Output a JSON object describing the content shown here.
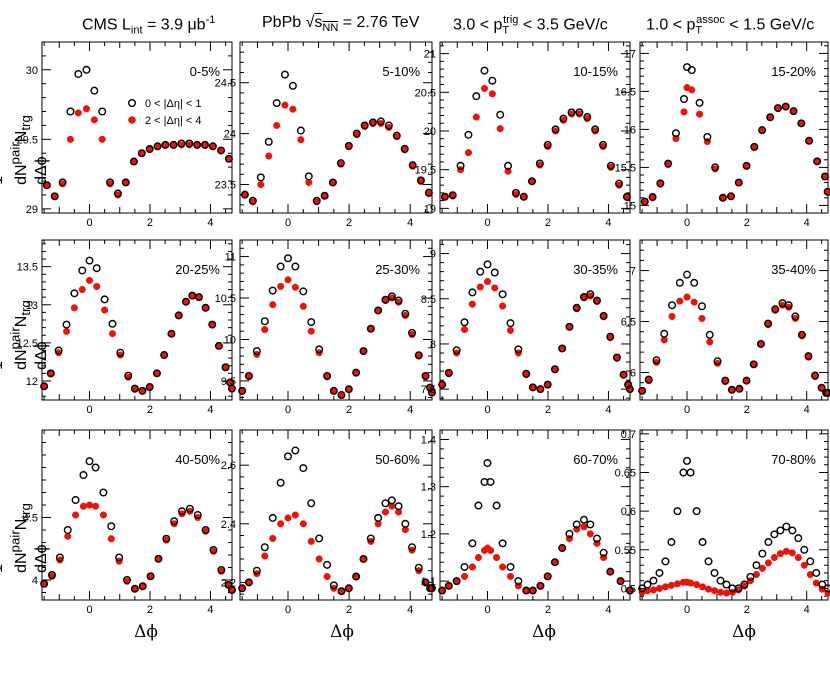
{
  "header": {
    "cms_prefix": "CMS L",
    "cms_sub": "int",
    "cms_value": " = 3.9 μb",
    "cms_sup": "-1",
    "system": "PbPb ",
    "sqrt_s": "s",
    "sqrt_sub": "NN",
    "energy": " = 2.76 TeV",
    "trig_lo": "3.0 < p",
    "trig_sub": "T",
    "trig_sup": "trig",
    "trig_hi": " < 3.5 GeV/c",
    "assoc_lo": "1.0 < p",
    "assoc_sub": "T",
    "assoc_sup": "assoc",
    "assoc_hi": " < 1.5 GeV/c"
  },
  "ylabel": {
    "num": "1",
    "dn": "dN",
    "pair_sup": "pair",
    "n": "N",
    "trg_sub": "trg",
    "dphi": "dΔϕ"
  },
  "xlabel": "Δϕ",
  "legend": {
    "open": "0 < |Δη| < 1",
    "filled": "2 < |Δη| < 4"
  },
  "colors": {
    "open_marker": "#000000",
    "filled_marker": "#e8150d",
    "axis": "#000000"
  },
  "chart_data": {
    "type": "scatter",
    "x": [
      -1.41,
      -1.15,
      -0.89,
      -0.63,
      -0.37,
      -0.1,
      0.16,
      0.42,
      0.68,
      0.94,
      1.2,
      1.47,
      1.73,
      1.99,
      2.25,
      2.51,
      2.78,
      3.04,
      3.3,
      3.56,
      3.82,
      4.08,
      4.35,
      4.61
    ],
    "xlim": [
      -1.5708,
      4.7124
    ],
    "xticks": [
      0,
      2,
      4
    ],
    "panels": [
      {
        "label": "0-5%",
        "ylim": [
          28.97,
          30.2
        ],
        "yticks": [
          29,
          29.5,
          30
        ],
        "open": [
          29.17,
          29.09,
          29.19,
          29.7,
          29.97,
          30.0,
          29.85,
          29.7,
          29.19,
          29.11,
          29.19,
          29.34,
          29.4,
          29.43,
          29.45,
          29.46,
          29.46,
          29.47,
          29.47,
          29.46,
          29.46,
          29.45,
          29.42,
          29.36
        ],
        "filled": [
          29.17,
          29.09,
          29.18,
          29.5,
          29.69,
          29.72,
          29.64,
          29.5,
          29.18,
          29.1,
          29.19,
          29.34,
          29.4,
          29.43,
          29.45,
          29.46,
          29.46,
          29.46,
          29.46,
          29.46,
          29.46,
          29.45,
          29.42,
          29.36
        ]
      },
      {
        "label": "5-10%",
        "ylim": [
          23.22,
          24.9
        ],
        "yticks": [
          23.5,
          24,
          24.5
        ],
        "open": [
          23.4,
          23.34,
          23.57,
          23.92,
          24.3,
          24.58,
          24.47,
          24.03,
          23.58,
          23.34,
          23.39,
          23.52,
          23.71,
          23.88,
          24.0,
          24.08,
          24.11,
          24.12,
          24.08,
          23.98,
          23.85,
          23.69,
          23.54,
          23.42
        ],
        "filled": [
          23.4,
          23.33,
          23.5,
          23.78,
          24.08,
          24.28,
          24.24,
          23.94,
          23.52,
          23.33,
          23.39,
          23.52,
          23.7,
          23.87,
          23.99,
          24.07,
          24.1,
          24.1,
          24.06,
          23.97,
          23.84,
          23.68,
          23.53,
          23.41
        ]
      },
      {
        "label": "10-15%",
        "ylim": [
          18.94,
          21.15
        ],
        "yticks": [
          19,
          19.5,
          20,
          20.5,
          21
        ],
        "open": [
          19.15,
          19.17,
          19.55,
          19.95,
          20.45,
          20.78,
          20.65,
          20.21,
          19.55,
          19.2,
          19.15,
          19.35,
          19.58,
          19.82,
          20.02,
          20.16,
          20.24,
          20.24,
          20.18,
          20.02,
          19.82,
          19.55,
          19.32,
          19.15
        ],
        "filled": [
          19.15,
          19.16,
          19.5,
          19.72,
          20.18,
          20.55,
          20.48,
          20.03,
          19.48,
          19.18,
          19.15,
          19.35,
          19.56,
          19.8,
          20.0,
          20.14,
          20.22,
          20.22,
          20.16,
          20.0,
          19.8,
          19.53,
          19.3,
          19.14
        ]
      },
      {
        "label": "15-20%",
        "ylim": [
          14.9,
          17.15
        ],
        "yticks": [
          15,
          15.5,
          16,
          16.5,
          17
        ],
        "open": [
          15.05,
          15.11,
          15.29,
          15.55,
          15.95,
          16.4,
          16.82,
          16.78,
          16.35,
          15.9,
          15.5,
          15.1,
          15.12,
          15.3,
          15.52,
          15.77,
          15.99,
          16.16,
          16.28,
          16.3,
          16.24,
          16.08,
          15.85,
          15.58,
          15.38,
          15.18
        ],
        "filled": [
          15.05,
          15.1,
          15.28,
          15.54,
          15.88,
          16.23,
          16.55,
          16.52,
          16.2,
          15.84,
          15.48,
          15.1,
          15.12,
          15.3,
          15.52,
          15.77,
          15.99,
          16.16,
          16.28,
          16.3,
          16.24,
          16.08,
          15.85,
          15.58,
          15.38,
          15.18
        ],
        "x_override": [
          -1.41,
          -1.15,
          -0.89,
          -0.63,
          -0.37,
          -0.1,
          0.0,
          0.16,
          0.42,
          0.68,
          0.94,
          1.2,
          1.47,
          1.73,
          1.99,
          2.25,
          2.51,
          2.78,
          3.04,
          3.3,
          3.56,
          3.82,
          4.08,
          4.35,
          4.61,
          4.7
        ]
      },
      {
        "label": "20-25%",
        "ylim": [
          11.75,
          13.85
        ],
        "yticks": [
          12,
          12.5,
          13,
          13.5
        ],
        "open": [
          11.93,
          12.1,
          12.4,
          12.74,
          13.15,
          13.45,
          13.58,
          13.48,
          13.07,
          12.75,
          12.37,
          12.07,
          11.9,
          11.87,
          11.92,
          12.1,
          12.34,
          12.62,
          12.86,
          13.04,
          13.12,
          13.1,
          12.96,
          12.74,
          12.46,
          12.18,
          11.98,
          11.9
        ],
        "filled": [
          11.93,
          12.09,
          12.37,
          12.65,
          12.96,
          13.2,
          13.32,
          13.24,
          12.93,
          12.62,
          12.34,
          12.05,
          11.89,
          11.87,
          11.92,
          12.1,
          12.34,
          12.62,
          12.86,
          13.04,
          13.12,
          13.1,
          12.96,
          12.74,
          12.46,
          12.18,
          11.98,
          11.9
        ],
        "x_override": [
          -1.5,
          -1.28,
          -1.02,
          -0.76,
          -0.5,
          -0.24,
          0.0,
          0.24,
          0.5,
          0.76,
          1.02,
          1.28,
          1.5,
          1.75,
          1.99,
          2.23,
          2.47,
          2.71,
          2.95,
          3.19,
          3.4,
          3.62,
          3.84,
          4.06,
          4.28,
          4.5,
          4.65,
          4.71
        ]
      },
      {
        "label": "25-30%",
        "ylim": [
          9.27,
          11.2
        ],
        "yticks": [
          9.5,
          10,
          10.5,
          11
        ],
        "open": [
          9.38,
          9.56,
          9.86,
          10.22,
          10.59,
          10.88,
          10.98,
          10.88,
          10.58,
          10.21,
          9.88,
          9.56,
          9.38,
          9.33,
          9.4,
          9.6,
          9.86,
          10.13,
          10.35,
          10.48,
          10.52,
          10.47,
          10.31,
          10.08,
          9.81,
          9.56,
          9.42,
          9.36
        ],
        "filled": [
          9.38,
          9.55,
          9.82,
          10.12,
          10.42,
          10.64,
          10.72,
          10.63,
          10.4,
          10.1,
          9.84,
          9.55,
          9.38,
          9.33,
          9.4,
          9.6,
          9.86,
          10.13,
          10.35,
          10.47,
          10.5,
          10.45,
          10.29,
          10.06,
          9.8,
          9.55,
          9.41,
          9.36
        ],
        "x_override": [
          -1.5,
          -1.28,
          -1.02,
          -0.76,
          -0.5,
          -0.24,
          0.0,
          0.24,
          0.5,
          0.76,
          1.02,
          1.28,
          1.5,
          1.75,
          1.99,
          2.23,
          2.47,
          2.71,
          2.95,
          3.19,
          3.4,
          3.62,
          3.84,
          4.06,
          4.28,
          4.5,
          4.65,
          4.71
        ]
      },
      {
        "label": "30-35%",
        "ylim": [
          7.38,
          9.15
        ],
        "yticks": [
          7.5,
          8,
          8.5,
          9
        ],
        "open": [
          7.55,
          7.68,
          7.93,
          8.24,
          8.57,
          8.8,
          8.88,
          8.79,
          8.55,
          8.23,
          7.94,
          7.67,
          7.52,
          7.5,
          7.55,
          7.72,
          7.95,
          8.19,
          8.4,
          8.52,
          8.55,
          8.48,
          8.31,
          8.08,
          7.85,
          7.66,
          7.55,
          7.5
        ],
        "filled": [
          7.55,
          7.67,
          7.9,
          8.16,
          8.44,
          8.63,
          8.69,
          8.62,
          8.42,
          8.15,
          7.9,
          7.66,
          7.52,
          7.5,
          7.55,
          7.72,
          7.95,
          8.19,
          8.39,
          8.51,
          8.53,
          8.47,
          8.3,
          8.07,
          7.84,
          7.66,
          7.55,
          7.5
        ],
        "x_override": [
          -1.5,
          -1.28,
          -1.02,
          -0.76,
          -0.5,
          -0.24,
          0.0,
          0.24,
          0.5,
          0.76,
          1.02,
          1.28,
          1.5,
          1.75,
          1.99,
          2.23,
          2.47,
          2.71,
          2.95,
          3.19,
          3.4,
          3.62,
          3.84,
          4.06,
          4.28,
          4.5,
          4.65,
          4.71
        ]
      },
      {
        "label": "35-40%",
        "ylim": [
          5.73,
          7.3
        ],
        "yticks": [
          6,
          6.5,
          7
        ],
        "open": [
          5.82,
          5.93,
          6.12,
          6.38,
          6.66,
          6.88,
          6.96,
          6.88,
          6.65,
          6.37,
          6.11,
          5.92,
          5.83,
          5.84,
          5.92,
          6.08,
          6.28,
          6.48,
          6.62,
          6.68,
          6.66,
          6.55,
          6.37,
          6.16,
          5.97,
          5.85,
          5.8,
          5.8
        ],
        "filled": [
          5.82,
          5.92,
          6.1,
          6.32,
          6.55,
          6.7,
          6.74,
          6.69,
          6.53,
          6.3,
          6.09,
          5.91,
          5.83,
          5.84,
          5.92,
          6.08,
          6.28,
          6.47,
          6.61,
          6.66,
          6.64,
          6.53,
          6.36,
          6.15,
          5.96,
          5.85,
          5.8,
          5.8
        ],
        "x_override": [
          -1.5,
          -1.28,
          -1.02,
          -0.76,
          -0.5,
          -0.24,
          0.0,
          0.24,
          0.5,
          0.76,
          1.02,
          1.28,
          1.5,
          1.75,
          1.99,
          2.23,
          2.47,
          2.71,
          2.95,
          3.19,
          3.4,
          3.62,
          3.84,
          4.06,
          4.28,
          4.5,
          4.65,
          4.71
        ]
      },
      {
        "label": "40-50%",
        "ylim": [
          3.84,
          5.2
        ],
        "yticks": [
          4,
          4.5
        ],
        "open": [
          3.97,
          4.04,
          4.18,
          4.4,
          4.64,
          4.84,
          4.95,
          4.9,
          4.7,
          4.43,
          4.18,
          4.0,
          3.93,
          3.95,
          4.03,
          4.17,
          4.33,
          4.47,
          4.55,
          4.57,
          4.52,
          4.4,
          4.24,
          4.08,
          3.96,
          3.92
        ],
        "filled": [
          3.97,
          4.03,
          4.16,
          4.35,
          4.52,
          4.59,
          4.6,
          4.59,
          4.52,
          4.33,
          4.15,
          3.99,
          3.93,
          3.95,
          4.03,
          4.17,
          4.32,
          4.45,
          4.53,
          4.55,
          4.5,
          4.39,
          4.23,
          4.07,
          3.96,
          3.92
        ],
        "x_override": [
          -1.5,
          -1.24,
          -0.98,
          -0.72,
          -0.46,
          -0.2,
          0.0,
          0.2,
          0.46,
          0.72,
          0.98,
          1.24,
          1.5,
          1.76,
          2.02,
          2.28,
          2.54,
          2.8,
          3.06,
          3.32,
          3.58,
          3.84,
          4.1,
          4.36,
          4.6,
          4.71
        ]
      },
      {
        "label": "50-60%",
        "ylim": [
          2.14,
          2.72
        ],
        "yticks": [
          2.2,
          2.4,
          2.6
        ],
        "open": [
          2.18,
          2.2,
          2.24,
          2.32,
          2.42,
          2.54,
          2.63,
          2.65,
          2.59,
          2.47,
          2.35,
          2.26,
          2.19,
          2.17,
          2.18,
          2.22,
          2.28,
          2.35,
          2.42,
          2.47,
          2.48,
          2.46,
          2.4,
          2.32,
          2.25,
          2.2,
          2.18,
          2.18
        ],
        "filled": [
          2.18,
          2.2,
          2.23,
          2.29,
          2.35,
          2.4,
          2.42,
          2.43,
          2.4,
          2.34,
          2.28,
          2.22,
          2.18,
          2.17,
          2.18,
          2.22,
          2.28,
          2.34,
          2.4,
          2.44,
          2.46,
          2.44,
          2.38,
          2.31,
          2.24,
          2.2,
          2.18,
          2.18
        ],
        "x_override": [
          -1.5,
          -1.28,
          -1.02,
          -0.76,
          -0.5,
          -0.24,
          0.0,
          0.24,
          0.5,
          0.76,
          1.02,
          1.28,
          1.5,
          1.75,
          1.99,
          2.23,
          2.47,
          2.71,
          2.95,
          3.19,
          3.4,
          3.62,
          3.84,
          4.06,
          4.28,
          4.5,
          4.65,
          4.71
        ]
      },
      {
        "label": "60-70%",
        "ylim": [
          1.06,
          1.42
        ],
        "yticks": [
          1.1,
          1.2,
          1.3,
          1.4
        ],
        "open": [
          1.08,
          1.09,
          1.1,
          1.13,
          1.18,
          1.26,
          1.31,
          1.35,
          1.31,
          1.26,
          1.18,
          1.13,
          1.1,
          1.08,
          1.08,
          1.09,
          1.11,
          1.14,
          1.17,
          1.2,
          1.22,
          1.23,
          1.22,
          1.19,
          1.16,
          1.12,
          1.1,
          1.08
        ],
        "filled": [
          1.08,
          1.09,
          1.1,
          1.11,
          1.13,
          1.15,
          1.165,
          1.17,
          1.165,
          1.15,
          1.13,
          1.11,
          1.09,
          1.08,
          1.08,
          1.09,
          1.11,
          1.14,
          1.17,
          1.19,
          1.21,
          1.215,
          1.2,
          1.18,
          1.15,
          1.12,
          1.1,
          1.08
        ],
        "x_override": [
          -1.5,
          -1.28,
          -1.02,
          -0.76,
          -0.5,
          -0.3,
          -0.1,
          0.0,
          0.1,
          0.3,
          0.5,
          0.76,
          1.02,
          1.28,
          1.5,
          1.75,
          1.99,
          2.23,
          2.47,
          2.71,
          2.95,
          3.19,
          3.4,
          3.62,
          3.84,
          4.06,
          4.4,
          4.71
        ]
      },
      {
        "label": "70-80%",
        "ylim": [
          0.485,
          0.705
        ],
        "yticks": [
          0.5,
          0.55,
          0.6,
          0.65,
          0.7
        ],
        "open": [
          0.5,
          0.505,
          0.51,
          0.52,
          0.535,
          0.56,
          0.6,
          0.65,
          0.665,
          0.65,
          0.6,
          0.56,
          0.535,
          0.52,
          0.51,
          0.505,
          0.5,
          0.5,
          0.505,
          0.515,
          0.53,
          0.545,
          0.56,
          0.57,
          0.575,
          0.58,
          0.575,
          0.565,
          0.55,
          0.535,
          0.52,
          0.505,
          0.5
        ],
        "filled": [
          0.495,
          0.497,
          0.498,
          0.5,
          0.502,
          0.504,
          0.506,
          0.508,
          0.508,
          0.507,
          0.505,
          0.502,
          0.499,
          0.497,
          0.495,
          0.494,
          0.495,
          0.498,
          0.503,
          0.51,
          0.518,
          0.526,
          0.533,
          0.54,
          0.545,
          0.548,
          0.546,
          0.54,
          0.53,
          0.518,
          0.507,
          0.499,
          0.494
        ],
        "x_override": [
          -1.5,
          -1.32,
          -1.12,
          -0.92,
          -0.72,
          -0.52,
          -0.32,
          -0.12,
          0.0,
          0.12,
          0.32,
          0.52,
          0.72,
          0.92,
          1.12,
          1.32,
          1.52,
          1.72,
          1.92,
          2.12,
          2.32,
          2.52,
          2.72,
          2.92,
          3.12,
          3.32,
          3.52,
          3.72,
          3.92,
          4.12,
          4.32,
          4.52,
          4.71
        ]
      }
    ]
  }
}
